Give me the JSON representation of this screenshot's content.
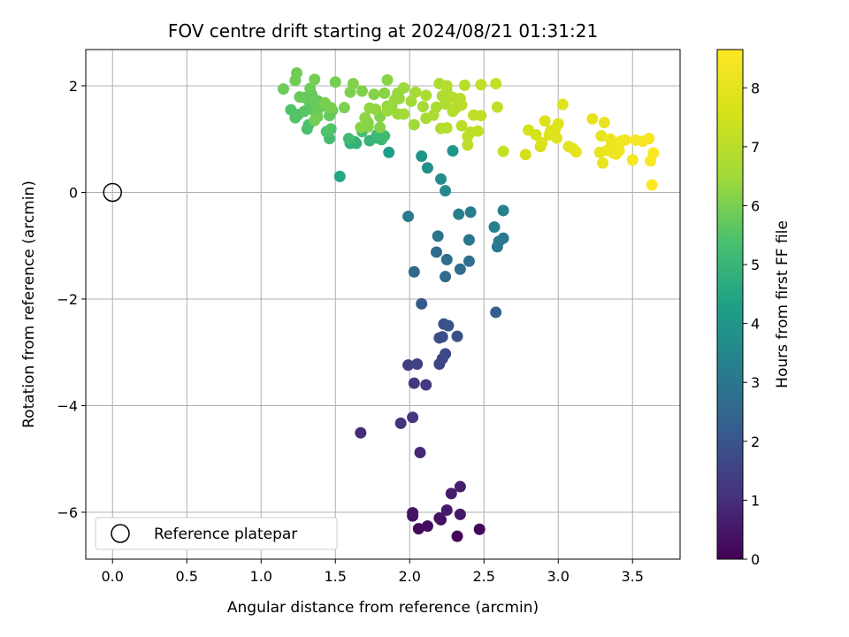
{
  "chart_data": {
    "type": "scatter",
    "title": "FOV centre drift starting at 2024/08/21 01:31:21",
    "xlabel": "Angular distance from reference (arcmin)",
    "ylabel": "Rotation from reference (arcmin)",
    "xlim": [
      -0.18,
      3.82
    ],
    "ylim": [
      -6.88,
      2.68
    ],
    "x_ticks": [
      0.0,
      0.5,
      1.0,
      1.5,
      2.0,
      2.5,
      3.0,
      3.5
    ],
    "x_tick_labels": [
      "0.0",
      "0.5",
      "1.0",
      "1.5",
      "2.0",
      "2.5",
      "3.0",
      "3.5"
    ],
    "y_ticks": [
      2,
      0,
      -2,
      -4,
      -6
    ],
    "y_tick_labels": [
      "2",
      "0",
      "−2",
      "−4",
      "−6"
    ],
    "grid": true,
    "colormap": "viridis",
    "colorbar": {
      "label": "Hours from first FF file",
      "range": [
        0,
        8.65
      ],
      "ticks": [
        0,
        1,
        2,
        3,
        4,
        5,
        6,
        7,
        8
      ],
      "tick_labels": [
        "0",
        "1",
        "2",
        "3",
        "4",
        "5",
        "6",
        "7",
        "8"
      ]
    },
    "legend": {
      "position": "lower-left",
      "entries": [
        "Reference platepar"
      ]
    },
    "reference_point": {
      "x": 0.0,
      "y": 0.0
    },
    "points": [
      [
        2.32,
        -6.45,
        0.1
      ],
      [
        2.47,
        -6.32,
        0.15
      ],
      [
        2.06,
        -6.31,
        0.2
      ],
      [
        2.12,
        -6.26,
        0.25
      ],
      [
        2.21,
        -6.14,
        0.3
      ],
      [
        2.2,
        -6.11,
        0.35
      ],
      [
        2.02,
        -6.07,
        0.4
      ],
      [
        2.02,
        -6.01,
        0.45
      ],
      [
        2.34,
        -6.04,
        0.5
      ],
      [
        2.25,
        -5.96,
        0.55
      ],
      [
        2.28,
        -5.65,
        0.6
      ],
      [
        2.34,
        -5.52,
        0.65
      ],
      [
        2.07,
        -4.88,
        0.85
      ],
      [
        1.67,
        -4.51,
        0.95
      ],
      [
        1.94,
        -4.33,
        1.05
      ],
      [
        2.02,
        -4.22,
        1.15
      ],
      [
        2.03,
        -3.58,
        1.25
      ],
      [
        2.11,
        -3.61,
        1.3
      ],
      [
        1.99,
        -3.24,
        1.4
      ],
      [
        2.05,
        -3.22,
        1.5
      ],
      [
        2.2,
        -3.22,
        1.55
      ],
      [
        2.22,
        -3.12,
        1.6
      ],
      [
        2.24,
        -3.03,
        1.65
      ],
      [
        2.2,
        -2.73,
        1.75
      ],
      [
        2.22,
        -2.71,
        1.8
      ],
      [
        2.32,
        -2.7,
        1.85
      ],
      [
        2.23,
        -2.47,
        1.9
      ],
      [
        2.26,
        -2.5,
        1.95
      ],
      [
        2.08,
        -2.09,
        2.1
      ],
      [
        2.58,
        -2.25,
        2.3
      ],
      [
        2.03,
        -1.49,
        2.55
      ],
      [
        2.24,
        -1.58,
        2.6
      ],
      [
        2.34,
        -1.44,
        2.65
      ],
      [
        2.18,
        -1.12,
        2.7
      ],
      [
        2.25,
        -1.26,
        2.75
      ],
      [
        2.4,
        -1.29,
        2.8
      ],
      [
        2.19,
        -0.82,
        2.9
      ],
      [
        2.4,
        -0.89,
        2.95
      ],
      [
        2.59,
        -1.02,
        3.0
      ],
      [
        2.6,
        -0.92,
        3.05
      ],
      [
        2.63,
        -0.86,
        3.1
      ],
      [
        1.99,
        -0.45,
        3.15
      ],
      [
        2.33,
        -0.41,
        3.2
      ],
      [
        2.41,
        -0.37,
        3.25
      ],
      [
        2.57,
        -0.65,
        3.3
      ],
      [
        2.63,
        -0.34,
        3.35
      ],
      [
        2.24,
        0.03,
        3.6
      ],
      [
        2.21,
        0.25,
        3.7
      ],
      [
        2.12,
        0.46,
        3.8
      ],
      [
        2.08,
        0.68,
        3.9
      ],
      [
        2.29,
        0.78,
        3.95
      ],
      [
        1.86,
        0.75,
        4.2
      ],
      [
        1.53,
        0.3,
        4.5
      ],
      [
        1.6,
        0.92,
        4.8
      ],
      [
        1.63,
        0.95,
        4.85
      ],
      [
        1.64,
        0.92,
        4.9
      ],
      [
        1.73,
        0.97,
        4.95
      ],
      [
        1.78,
        1.02,
        5.0
      ],
      [
        1.81,
        0.99,
        5.05
      ],
      [
        1.78,
        1.08,
        5.1
      ],
      [
        1.83,
        1.06,
        5.15
      ],
      [
        1.59,
        1.01,
        5.2
      ],
      [
        1.46,
        1.01,
        5.25
      ],
      [
        1.68,
        1.14,
        5.3
      ],
      [
        1.31,
        1.19,
        5.35
      ],
      [
        1.32,
        1.27,
        5.4
      ],
      [
        1.44,
        1.14,
        5.45
      ],
      [
        1.47,
        1.19,
        5.5
      ],
      [
        1.2,
        1.55,
        5.5
      ],
      [
        1.23,
        1.4,
        5.55
      ],
      [
        1.25,
        1.46,
        5.55
      ],
      [
        1.29,
        1.52,
        5.6
      ],
      [
        1.36,
        1.52,
        5.6
      ],
      [
        1.33,
        1.65,
        5.65
      ],
      [
        1.38,
        1.72,
        5.65
      ],
      [
        1.29,
        1.78,
        5.7
      ],
      [
        1.34,
        1.84,
        5.7
      ],
      [
        1.42,
        1.62,
        5.75
      ],
      [
        1.46,
        1.44,
        5.75
      ],
      [
        1.48,
        1.54,
        5.75
      ],
      [
        1.26,
        1.79,
        5.8
      ],
      [
        1.35,
        1.73,
        5.8
      ],
      [
        1.38,
        1.55,
        5.8
      ],
      [
        1.33,
        1.95,
        5.85
      ],
      [
        1.15,
        1.94,
        5.85
      ],
      [
        1.24,
        2.24,
        5.9
      ],
      [
        1.23,
        2.1,
        5.9
      ],
      [
        1.36,
        2.12,
        5.95
      ],
      [
        1.5,
        2.07,
        5.95
      ],
      [
        1.38,
        1.42,
        5.9
      ],
      [
        1.36,
        1.35,
        5.95
      ],
      [
        1.43,
        1.68,
        6.0
      ],
      [
        1.47,
        1.59,
        6.0
      ],
      [
        1.56,
        1.59,
        6.05
      ],
      [
        1.6,
        1.88,
        6.05
      ],
      [
        1.62,
        2.04,
        6.1
      ],
      [
        1.68,
        1.9,
        6.1
      ],
      [
        1.76,
        1.84,
        6.15
      ],
      [
        1.83,
        1.86,
        6.2
      ],
      [
        1.85,
        2.11,
        6.2
      ],
      [
        1.8,
        1.42,
        6.1
      ],
      [
        1.8,
        1.22,
        6.15
      ],
      [
        1.72,
        1.23,
        6.15
      ],
      [
        1.67,
        1.22,
        6.2
      ],
      [
        1.72,
        1.31,
        6.2
      ],
      [
        1.7,
        1.4,
        6.25
      ],
      [
        1.77,
        1.56,
        6.3
      ],
      [
        1.73,
        1.58,
        6.3
      ],
      [
        1.85,
        1.62,
        6.35
      ],
      [
        1.88,
        1.63,
        6.35
      ],
      [
        1.9,
        1.74,
        6.4
      ],
      [
        1.93,
        1.76,
        6.4
      ],
      [
        1.92,
        1.86,
        6.4
      ],
      [
        1.96,
        1.96,
        6.45
      ],
      [
        1.85,
        1.53,
        6.45
      ],
      [
        1.92,
        1.47,
        6.45
      ],
      [
        1.96,
        1.47,
        6.5
      ],
      [
        2.01,
        1.71,
        6.55
      ],
      [
        2.04,
        1.88,
        6.6
      ],
      [
        2.03,
        1.27,
        6.5
      ],
      [
        2.09,
        1.61,
        6.6
      ],
      [
        2.11,
        1.39,
        6.65
      ],
      [
        2.11,
        1.82,
        6.7
      ],
      [
        2.16,
        1.45,
        6.7
      ],
      [
        2.18,
        1.6,
        6.7
      ],
      [
        2.2,
        2.04,
        6.75
      ],
      [
        2.22,
        1.81,
        6.75
      ],
      [
        2.24,
        1.66,
        6.8
      ],
      [
        2.25,
        1.89,
        6.8
      ],
      [
        2.25,
        2.0,
        6.85
      ],
      [
        2.21,
        1.2,
        6.85
      ],
      [
        2.25,
        1.21,
        6.9
      ],
      [
        2.29,
        1.52,
        6.85
      ],
      [
        2.31,
        1.58,
        6.9
      ],
      [
        2.29,
        1.78,
        6.95
      ],
      [
        2.34,
        1.76,
        6.95
      ],
      [
        2.37,
        2.01,
        7.0
      ],
      [
        2.35,
        1.64,
        7.0
      ],
      [
        2.35,
        1.25,
        7.0
      ],
      [
        2.41,
        1.13,
        7.05
      ],
      [
        2.39,
        0.89,
        7.05
      ],
      [
        2.39,
        1.05,
        7.1
      ],
      [
        2.43,
        1.45,
        7.1
      ],
      [
        2.46,
        1.15,
        7.15
      ],
      [
        2.48,
        1.44,
        7.15
      ],
      [
        2.48,
        2.02,
        7.15
      ],
      [
        2.58,
        2.04,
        7.2
      ],
      [
        2.59,
        1.6,
        7.2
      ],
      [
        2.63,
        0.77,
        7.25
      ],
      [
        2.78,
        0.71,
        7.5
      ],
      [
        2.8,
        1.17,
        7.55
      ],
      [
        2.85,
        1.08,
        7.6
      ],
      [
        2.88,
        0.86,
        7.65
      ],
      [
        2.89,
        0.93,
        7.7
      ],
      [
        2.91,
        1.34,
        7.75
      ],
      [
        2.94,
        1.08,
        7.75
      ],
      [
        2.95,
        1.16,
        7.8
      ],
      [
        2.98,
        1.19,
        7.8
      ],
      [
        2.99,
        1.02,
        7.85
      ],
      [
        3.0,
        1.29,
        7.85
      ],
      [
        3.03,
        1.65,
        7.9
      ],
      [
        3.07,
        0.86,
        7.9
      ],
      [
        3.1,
        0.82,
        7.95
      ],
      [
        3.12,
        0.76,
        8.0
      ],
      [
        3.23,
        1.38,
        8.0
      ],
      [
        3.29,
        1.06,
        8.05
      ],
      [
        3.31,
        1.31,
        8.1
      ],
      [
        3.28,
        0.75,
        8.1
      ],
      [
        3.3,
        0.55,
        8.15
      ],
      [
        3.33,
        0.79,
        8.15
      ],
      [
        3.35,
        1.0,
        8.2
      ],
      [
        3.36,
        0.89,
        8.2
      ],
      [
        3.37,
        0.74,
        8.25
      ],
      [
        3.39,
        0.72,
        8.25
      ],
      [
        3.4,
        0.84,
        8.3
      ],
      [
        3.41,
        0.79,
        8.3
      ],
      [
        3.42,
        0.96,
        8.35
      ],
      [
        3.45,
        0.98,
        8.35
      ],
      [
        3.5,
        0.61,
        8.4
      ],
      [
        3.52,
        0.98,
        8.4
      ],
      [
        3.57,
        0.96,
        8.45
      ],
      [
        3.61,
        1.01,
        8.5
      ],
      [
        3.62,
        0.59,
        8.55
      ],
      [
        3.64,
        0.74,
        8.6
      ],
      [
        3.63,
        0.14,
        8.65
      ]
    ]
  }
}
